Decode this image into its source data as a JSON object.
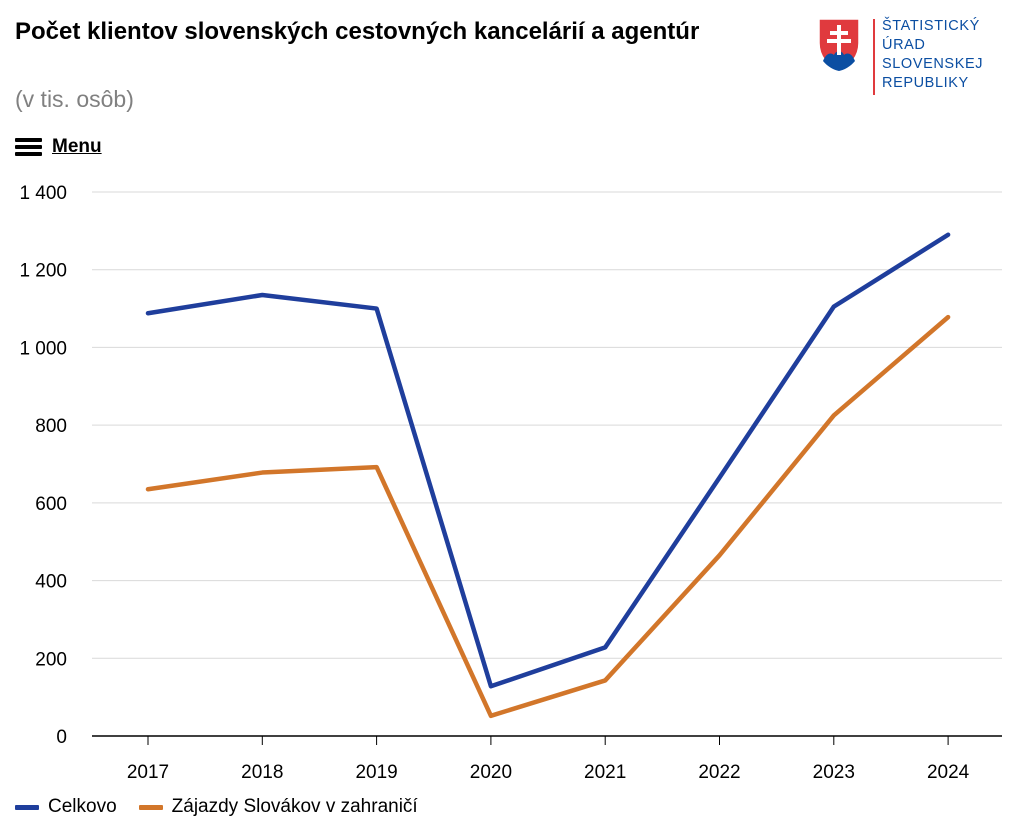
{
  "header": {
    "title": "Počet klientov slovenských cestovných kancelárií a agentúr",
    "subtitle": "(v tis. osôb)"
  },
  "logo": {
    "lines": [
      "ŠTATISTICKÝ",
      "ÚRAD",
      "SLOVENSKEJ",
      "REPUBLIKY"
    ],
    "color": "#0b4ea2"
  },
  "menu": {
    "label": "Menu",
    "icon": "hamburger-icon"
  },
  "chart_data": {
    "type": "line",
    "title": "Počet klientov slovenských cestovných kancelárií a agentúr",
    "subtitle": "(v tis. osôb)",
    "categories": [
      "2017",
      "2018",
      "2019",
      "2020",
      "2021",
      "2022",
      "2023",
      "2024"
    ],
    "y_ticks": [
      "0",
      "200",
      "400",
      "600",
      "800",
      "1 000",
      "1 200",
      "1 400"
    ],
    "ylim": [
      0,
      1400
    ],
    "grid": true,
    "legend_position": "bottom-left",
    "series": [
      {
        "name": "Celkovo",
        "color": "#1f3e9c",
        "values": [
          1088,
          1135,
          1100,
          128,
          228,
          665,
          1105,
          1290
        ]
      },
      {
        "name": "Zájazdy Slovákov v zahraničí",
        "color": "#d2762a",
        "values": [
          635,
          678,
          692,
          52,
          143,
          465,
          825,
          1078
        ]
      }
    ]
  }
}
